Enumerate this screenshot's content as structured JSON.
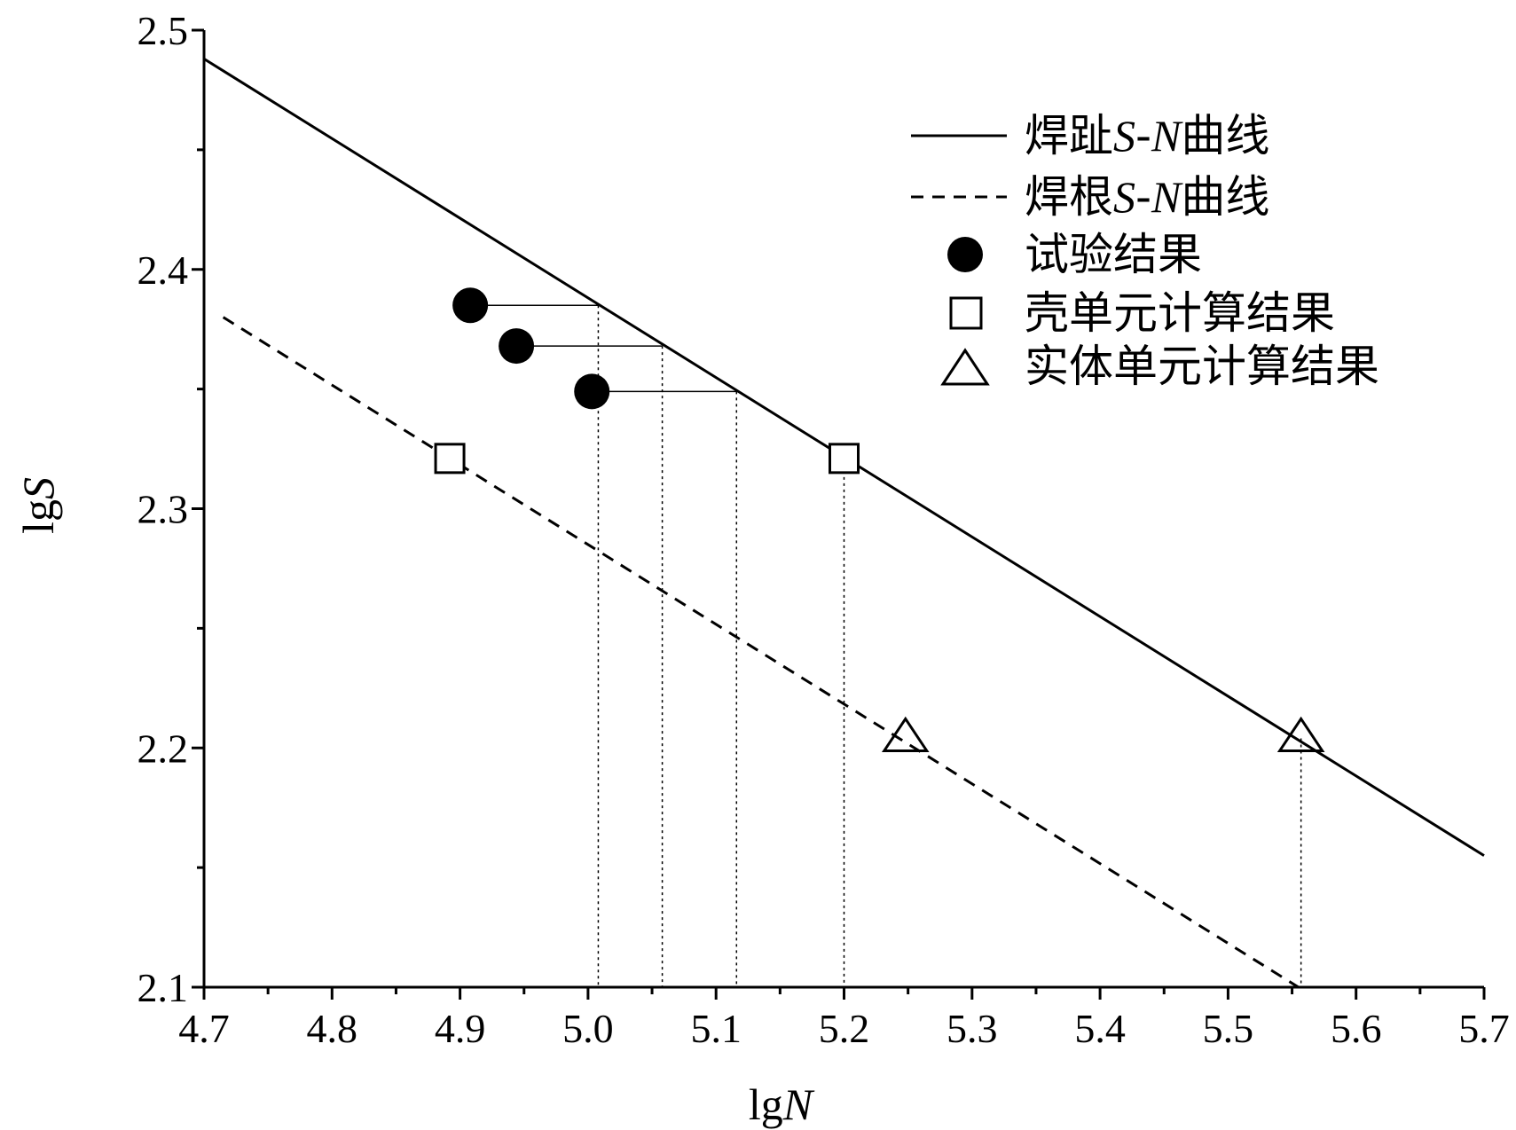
{
  "chart_data": {
    "type": "scatter",
    "xlabel": {
      "prefix": "lg",
      "var": "N"
    },
    "ylabel": {
      "prefix": "lg",
      "var": "S"
    },
    "xlim": [
      4.7,
      5.7
    ],
    "ylim": [
      2.1,
      2.5
    ],
    "x_ticks": [
      "4.7",
      "4.8",
      "4.9",
      "5.0",
      "5.1",
      "5.2",
      "5.3",
      "5.4",
      "5.5",
      "5.6",
      "5.7"
    ],
    "y_ticks": [
      "2.1",
      "2.2",
      "2.3",
      "2.4",
      "2.5"
    ],
    "grid": false,
    "legend_position": "top-right",
    "series": [
      {
        "name": {
          "pre": "焊趾",
          "it1": "S",
          "dash": "-",
          "it2": "N",
          "post": "曲线"
        },
        "kind": "line",
        "style": "solid",
        "color": "#000000",
        "x": [
          4.7,
          5.7
        ],
        "y": [
          2.488,
          2.155
        ]
      },
      {
        "name": {
          "pre": "焊根",
          "it1": "S",
          "dash": "-",
          "it2": "N",
          "post": "曲线"
        },
        "kind": "line",
        "style": "dashed",
        "color": "#000000",
        "x": [
          4.715,
          5.555
        ],
        "y": [
          2.38,
          2.1
        ]
      },
      {
        "name": {
          "pre": "试验结果"
        },
        "kind": "scatter",
        "marker": "filled-circle",
        "color": "#000000",
        "x": [
          4.908,
          4.944,
          5.003
        ],
        "y": [
          2.385,
          2.368,
          2.349
        ]
      },
      {
        "name": {
          "pre": "壳单元计算结果"
        },
        "kind": "scatter",
        "marker": "open-square",
        "color": "#000000",
        "x": [
          4.892,
          5.2
        ],
        "y": [
          2.321,
          2.321
        ]
      },
      {
        "name": {
          "pre": "实体单元计算结果"
        },
        "kind": "scatter",
        "marker": "open-triangle",
        "color": "#000000",
        "x": [
          5.248,
          5.557
        ],
        "y": [
          2.204,
          2.204
        ]
      }
    ],
    "projection_lines": {
      "horizontal": [
        {
          "x0": 4.908,
          "x1": 5.008,
          "y": 2.385
        },
        {
          "x0": 4.944,
          "x1": 5.058,
          "y": 2.368
        },
        {
          "x0": 5.003,
          "x1": 5.116,
          "y": 2.349
        }
      ],
      "vertical": [
        {
          "x": 5.008,
          "y_top": 2.385
        },
        {
          "x": 5.058,
          "y_top": 2.368
        },
        {
          "x": 5.116,
          "y_top": 2.349
        },
        {
          "x": 5.2,
          "y_top": 2.321
        },
        {
          "x": 5.557,
          "y_top": 2.204
        }
      ]
    }
  }
}
